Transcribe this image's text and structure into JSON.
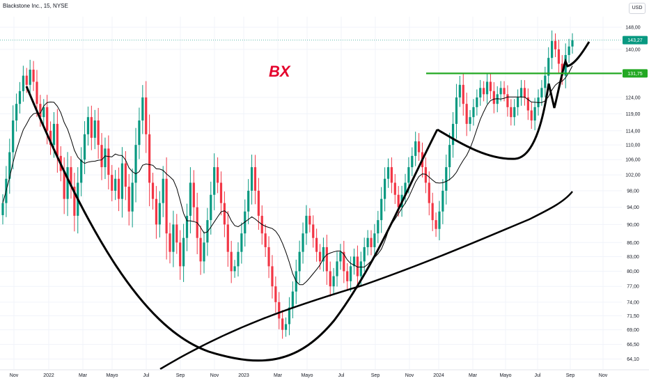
{
  "header": {
    "symbol_title": "Blackstone Inc., 15, NYSE",
    "currency": "USD"
  },
  "chart_data": {
    "type": "candlestick",
    "title": "Blackstone Inc., 15, NYSE",
    "annotation": "BX",
    "x_ticks": [
      "Nov",
      "2022",
      "Mar",
      "Mayo",
      "Jul",
      "Sep",
      "Nov",
      "2023",
      "Mar",
      "Mayo",
      "Jul",
      "Sep",
      "Nov",
      "2024",
      "Mar",
      "Mayo",
      "Jul",
      "Sep",
      "Nov"
    ],
    "y_ticks": [
      "148,00",
      "140,00",
      "124,00",
      "119,00",
      "114,00",
      "110,00",
      "106,00",
      "102,00",
      "98,00",
      "94,00",
      "90,00",
      "86,00",
      "83,00",
      "80,00",
      "77,00",
      "74,00",
      "71,50",
      "69,00",
      "66,50",
      "64,10"
    ],
    "y_scale": "log",
    "ylim": [
      64.1,
      148
    ],
    "price_tags": [
      {
        "label": "143,27",
        "value": 143.27,
        "color": "#089981"
      },
      {
        "label": "131,75",
        "value": 131.75,
        "color": "#22a822"
      }
    ],
    "resistance_level": 131.75,
    "colors": {
      "up": "#089981",
      "down": "#f23645",
      "resistance": "#22a822",
      "annotation": "#e4002b"
    },
    "weekly_closes": [
      95,
      101,
      108,
      117,
      122,
      126,
      131,
      128,
      133,
      129,
      122,
      118,
      121,
      114,
      110,
      116,
      107,
      103,
      96,
      104,
      99,
      92,
      100,
      106,
      113,
      118,
      112,
      117,
      110,
      104,
      109,
      102,
      98,
      101,
      96,
      105,
      99,
      93,
      100,
      110,
      117,
      124,
      113,
      100,
      96,
      90,
      95,
      101,
      88,
      84,
      90,
      86,
      81,
      87,
      92,
      100,
      94,
      87,
      82,
      86,
      91,
      97,
      104,
      100,
      95,
      90,
      84,
      80,
      81,
      84,
      88,
      93,
      98,
      104,
      98,
      92,
      88,
      85,
      81,
      77,
      74,
      71,
      69,
      70,
      73,
      76,
      80,
      84,
      88,
      92,
      90,
      87,
      84,
      82,
      85,
      80,
      77,
      79,
      82,
      84,
      80,
      78,
      81,
      83,
      79,
      82,
      85,
      87,
      85,
      88,
      91,
      96,
      101,
      104,
      100,
      97,
      94,
      97,
      100,
      104,
      107,
      111,
      108,
      104,
      100,
      95,
      91,
      89,
      93,
      98,
      104,
      110,
      116,
      124,
      128,
      122,
      116,
      118,
      121,
      124,
      127,
      125,
      129,
      126,
      122,
      125,
      127,
      125,
      121,
      118,
      121,
      124,
      127,
      124,
      120,
      117,
      121,
      124,
      127,
      131,
      137,
      143,
      140,
      135,
      131,
      138,
      141,
      143.27
    ]
  }
}
